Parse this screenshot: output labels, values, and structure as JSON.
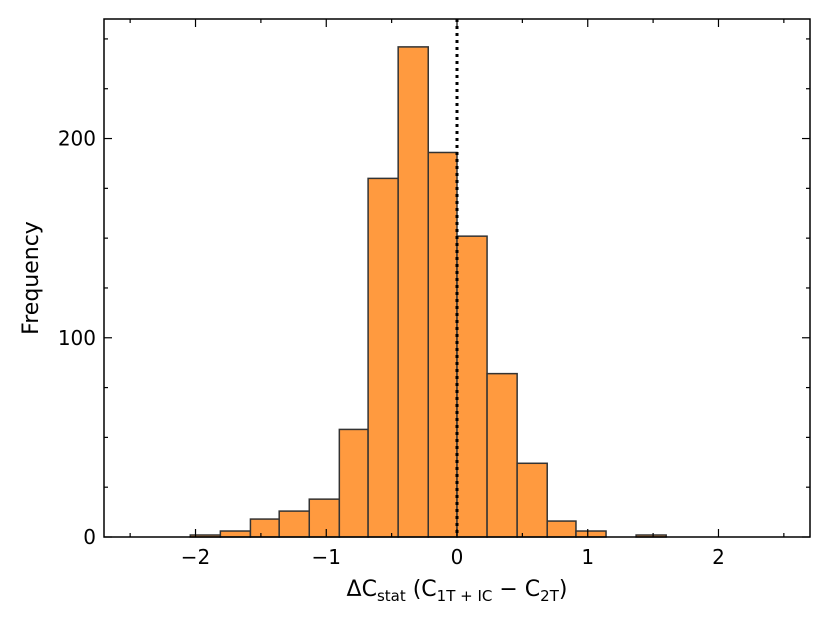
{
  "chart_data": {
    "type": "bar",
    "subtype": "histogram",
    "title": "",
    "xlabel": {
      "main": "ΔC",
      "main_sub": "stat",
      "open": " (C",
      "sub1": "1T + IC",
      "mid": " − C",
      "sub2": "2T",
      "close": ")"
    },
    "ylabel": "Frequency",
    "xlim": [
      -2.7,
      2.7
    ],
    "ylim": [
      0,
      260
    ],
    "xticks": [
      -2,
      -1,
      0,
      1,
      2
    ],
    "xtick_labels": [
      "−2",
      "−1",
      "0",
      "1",
      "2"
    ],
    "yticks": [
      0,
      100,
      200
    ],
    "ytick_labels": [
      "0",
      "100",
      "200"
    ],
    "bin_width": 0.227,
    "bins": [
      {
        "x0": -2.04,
        "x1": -1.81,
        "count": 1
      },
      {
        "x0": -1.81,
        "x1": -1.58,
        "count": 3
      },
      {
        "x0": -1.58,
        "x1": -1.36,
        "count": 9
      },
      {
        "x0": -1.36,
        "x1": -1.13,
        "count": 13
      },
      {
        "x0": -1.13,
        "x1": -0.9,
        "count": 19
      },
      {
        "x0": -0.9,
        "x1": -0.68,
        "count": 54
      },
      {
        "x0": -0.68,
        "x1": -0.45,
        "count": 180
      },
      {
        "x0": -0.45,
        "x1": -0.22,
        "count": 246
      },
      {
        "x0": -0.22,
        "x1": 0.0,
        "count": 193
      },
      {
        "x0": 0.0,
        "x1": 0.23,
        "count": 151
      },
      {
        "x0": 0.23,
        "x1": 0.46,
        "count": 82
      },
      {
        "x0": 0.46,
        "x1": 0.69,
        "count": 37
      },
      {
        "x0": 0.69,
        "x1": 0.91,
        "count": 8
      },
      {
        "x0": 0.91,
        "x1": 1.14,
        "count": 3
      },
      {
        "x0": 1.14,
        "x1": 1.37,
        "count": 0
      },
      {
        "x0": 1.37,
        "x1": 1.6,
        "count": 1
      }
    ],
    "reference_line": {
      "x": 0,
      "style": "dotted",
      "color": "#000000"
    },
    "bar_color": "#ff9a3f",
    "edge_color": "#333333",
    "grid": false,
    "legend": "none"
  }
}
